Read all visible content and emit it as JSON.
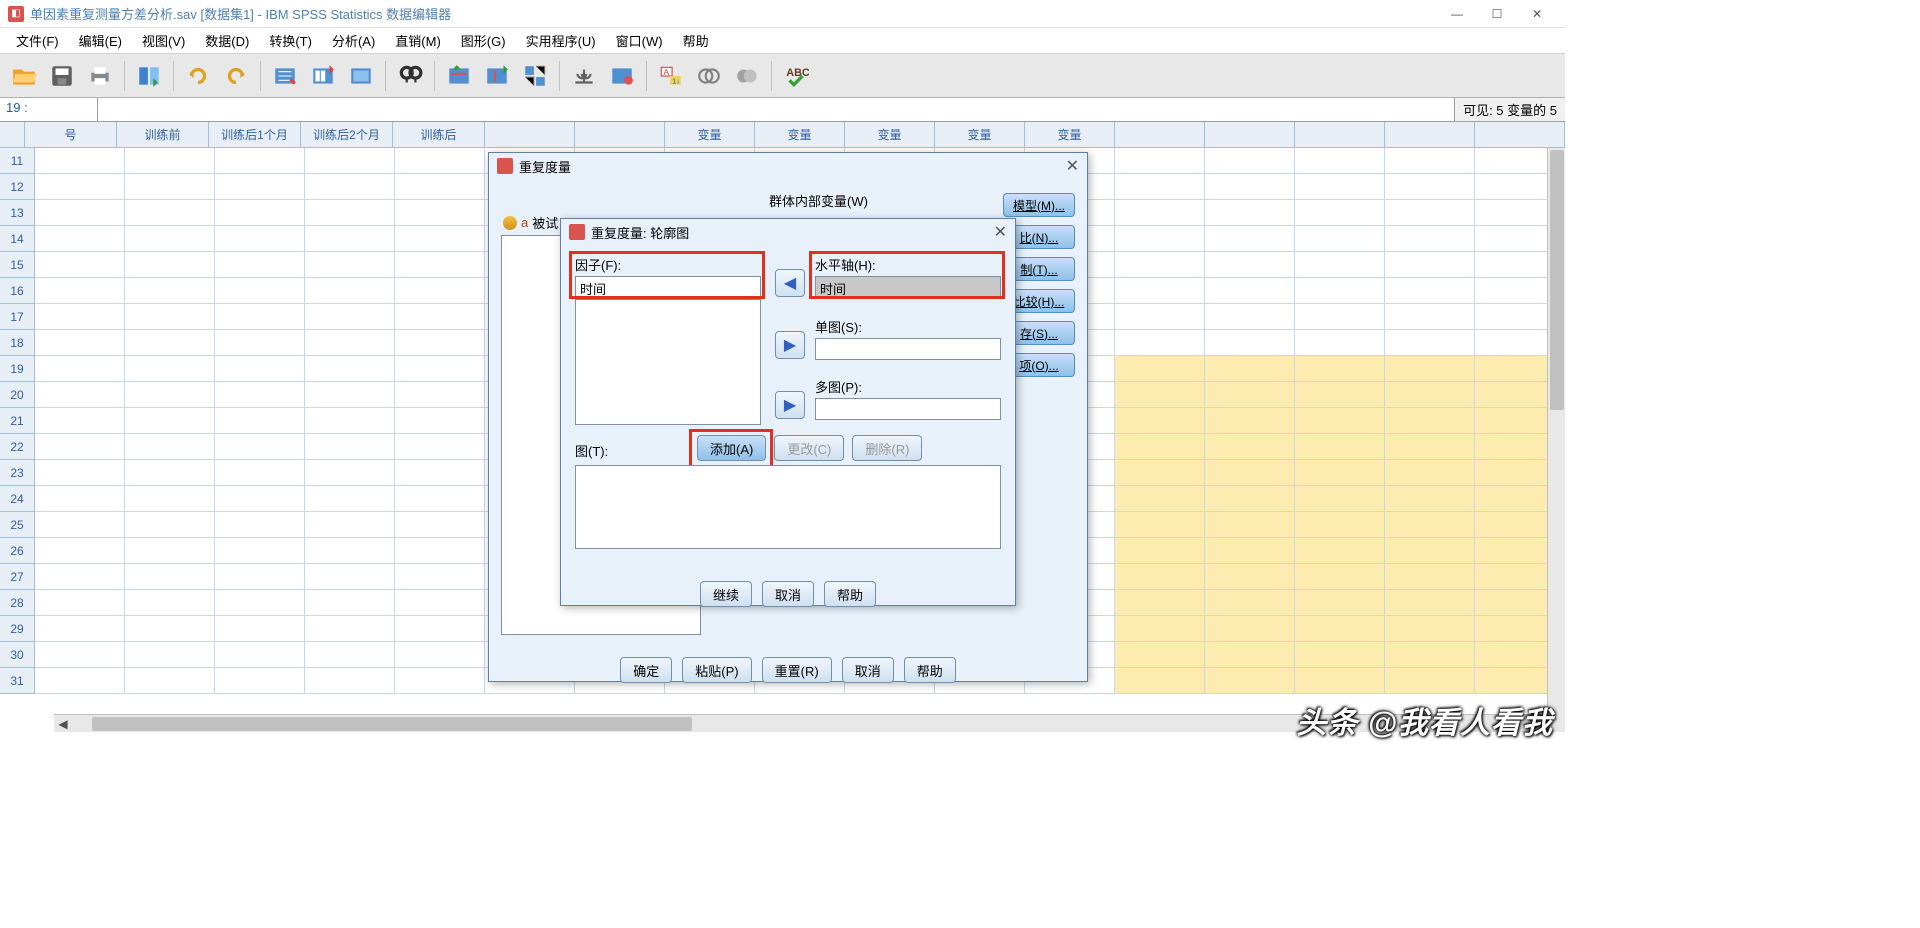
{
  "window": {
    "title": "单因素重复测量方差分析.sav [数据集1] - IBM SPSS Statistics 数据编辑器"
  },
  "menu": {
    "file": "文件(F)",
    "edit": "编辑(E)",
    "view": "视图(V)",
    "data": "数据(D)",
    "transform": "转换(T)",
    "analyze": "分析(A)",
    "direct": "直销(M)",
    "graphs": "图形(G)",
    "utilities": "实用程序(U)",
    "window": "窗口(W)",
    "help": "帮助"
  },
  "ref": {
    "cell": "19 :",
    "visible": "可见:  5 变量的 5"
  },
  "columns": [
    "号",
    "训练前",
    "训练后1个月",
    "训练后2个月",
    "训练后",
    "",
    "",
    "变量",
    "变量",
    "变量",
    "变量",
    "变量"
  ],
  "rows": [
    11,
    12,
    13,
    14,
    15,
    16,
    17,
    18,
    19,
    20,
    21,
    22,
    23,
    24,
    25,
    26,
    27,
    28,
    29,
    30,
    31
  ],
  "yellow_start_row": 19,
  "back_dialog": {
    "title": "重复度量",
    "group_label": "群体内部变量(W)",
    "subjects_label": "被试",
    "side": {
      "model": "模型(M)...",
      "contrast": "比(N)...",
      "plots": "制(T)...",
      "posthoc": "比较(H)...",
      "save": "存(S)...",
      "options": "项(O)..."
    },
    "buttons": {
      "ok": "确定",
      "paste": "粘贴(P)",
      "reset": "重置(R)",
      "cancel": "取消",
      "help": "帮助"
    }
  },
  "front_dialog": {
    "title": "重复度量: 轮廓图",
    "factor_label": "因子(F):",
    "factor_value": "时间",
    "haxis_label": "水平轴(H):",
    "haxis_value": "时间",
    "single_label": "单图(S):",
    "multi_label": "多图(P):",
    "plots_label": "图(T):",
    "btns": {
      "add": "添加(A)",
      "change": "更改(C)",
      "remove": "删除(R)"
    },
    "footer": {
      "continue": "继续",
      "cancel": "取消",
      "help": "帮助"
    }
  },
  "watermark": "头条 @我看人看我"
}
